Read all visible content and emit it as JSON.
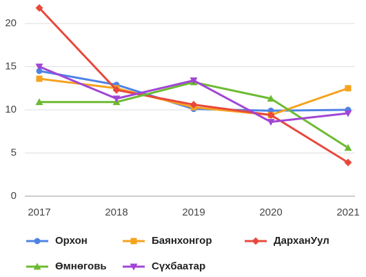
{
  "chart_data": {
    "type": "line",
    "categories": [
      "2017",
      "2018",
      "2019",
      "2020",
      "2021"
    ],
    "series": [
      {
        "name": "Орхон",
        "color": "#4e83e6",
        "marker": "circle",
        "values": [
          14.5,
          12.9,
          10.1,
          9.9,
          10.0
        ]
      },
      {
        "name": "Баянхонгор",
        "color": "#f5a21e",
        "marker": "square",
        "values": [
          13.6,
          12.5,
          10.3,
          9.4,
          12.5
        ]
      },
      {
        "name": "ДарханУул",
        "color": "#e8483c",
        "marker": "diamond",
        "values": [
          21.8,
          12.3,
          10.6,
          9.4,
          3.9
        ]
      },
      {
        "name": "Өмнөговь",
        "color": "#6cba32",
        "marker": "triangle-up",
        "values": [
          10.9,
          10.9,
          13.2,
          11.3,
          5.6
        ]
      },
      {
        "name": "Сүхбаатар",
        "color": "#a145d6",
        "marker": "triangle-down",
        "values": [
          15.0,
          11.3,
          13.4,
          8.6,
          9.6
        ]
      }
    ],
    "ylim": [
      0,
      22
    ],
    "yticks": [
      0,
      5,
      10,
      15,
      20
    ],
    "grid": true,
    "legend": "bottom"
  }
}
